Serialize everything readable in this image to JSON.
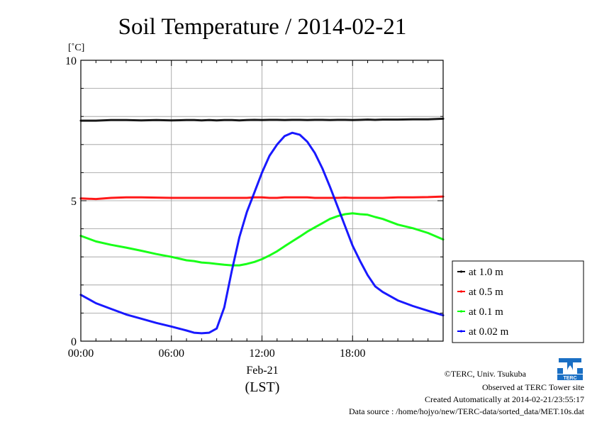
{
  "chart_data": {
    "type": "line",
    "title": "Soil Temperature / 2014-02-21",
    "ylabel": "[˚C]",
    "xlabel": "(LST)",
    "date_label": "Feb-21",
    "xlim": [
      0,
      24
    ],
    "ylim": [
      0,
      10
    ],
    "x_ticks": [
      0,
      6,
      12,
      18
    ],
    "x_tick_labels": [
      "00:00",
      "06:00",
      "12:00",
      "18:00"
    ],
    "y_ticks": [
      0,
      5,
      10
    ],
    "y_tick_labels": [
      "0",
      "5",
      "10"
    ],
    "grid": true,
    "legend_position": "right",
    "x_hours": [
      0,
      1,
      2,
      3,
      4,
      5,
      6,
      7,
      7.5,
      8,
      8.5,
      9,
      9.5,
      10,
      10.5,
      11,
      11.5,
      12,
      12.5,
      13,
      13.5,
      14,
      14.5,
      15,
      15.5,
      16,
      16.5,
      17,
      17.5,
      18,
      18.5,
      19,
      19.5,
      20,
      21,
      22,
      23,
      24
    ],
    "series": [
      {
        "name": "at 1.0 m",
        "color": "#000000",
        "values": [
          7.85,
          7.85,
          7.87,
          7.87,
          7.86,
          7.87,
          7.86,
          7.87,
          7.87,
          7.86,
          7.87,
          7.86,
          7.87,
          7.87,
          7.86,
          7.87,
          7.88,
          7.87,
          7.88,
          7.88,
          7.87,
          7.88,
          7.88,
          7.87,
          7.88,
          7.88,
          7.87,
          7.88,
          7.88,
          7.87,
          7.88,
          7.89,
          7.88,
          7.89,
          7.89,
          7.9,
          7.9,
          7.92
        ]
      },
      {
        "name": "at 0.5 m",
        "color": "#ff0000",
        "values": [
          5.08,
          5.06,
          5.1,
          5.12,
          5.12,
          5.11,
          5.1,
          5.1,
          5.1,
          5.1,
          5.1,
          5.1,
          5.1,
          5.1,
          5.1,
          5.1,
          5.12,
          5.12,
          5.1,
          5.1,
          5.12,
          5.12,
          5.12,
          5.12,
          5.1,
          5.1,
          5.1,
          5.1,
          5.11,
          5.1,
          5.1,
          5.1,
          5.1,
          5.1,
          5.12,
          5.12,
          5.13,
          5.15
        ]
      },
      {
        "name": "at 0.1 m",
        "color": "#00ff00",
        "values": [
          3.75,
          3.55,
          3.43,
          3.33,
          3.22,
          3.1,
          3.0,
          2.88,
          2.85,
          2.8,
          2.78,
          2.75,
          2.72,
          2.7,
          2.7,
          2.75,
          2.82,
          2.92,
          3.05,
          3.2,
          3.38,
          3.55,
          3.72,
          3.9,
          4.05,
          4.2,
          4.35,
          4.45,
          4.52,
          4.55,
          4.52,
          4.5,
          4.42,
          4.35,
          4.15,
          4.02,
          3.85,
          3.62
        ]
      },
      {
        "name": "at 0.02 m",
        "color": "#0000ff",
        "values": [
          1.65,
          1.35,
          1.15,
          0.95,
          0.8,
          0.65,
          0.52,
          0.38,
          0.3,
          0.28,
          0.3,
          0.45,
          1.2,
          2.5,
          3.7,
          4.6,
          5.3,
          6.0,
          6.6,
          7.0,
          7.3,
          7.42,
          7.35,
          7.1,
          6.7,
          6.15,
          5.5,
          4.8,
          4.1,
          3.4,
          2.85,
          2.35,
          1.95,
          1.75,
          1.45,
          1.25,
          1.08,
          0.92
        ]
      }
    ]
  },
  "footer": {
    "copyright": "©TERC, Univ. Tsukuba",
    "observed": "Observed at TERC Tower site",
    "created": "Created Automatically at 2014-02-21/23:55:17",
    "source": "Data source : /home/hojyo/new/TERC-data/sorted_data/MET.10s.dat",
    "logo_text": "TERC"
  }
}
